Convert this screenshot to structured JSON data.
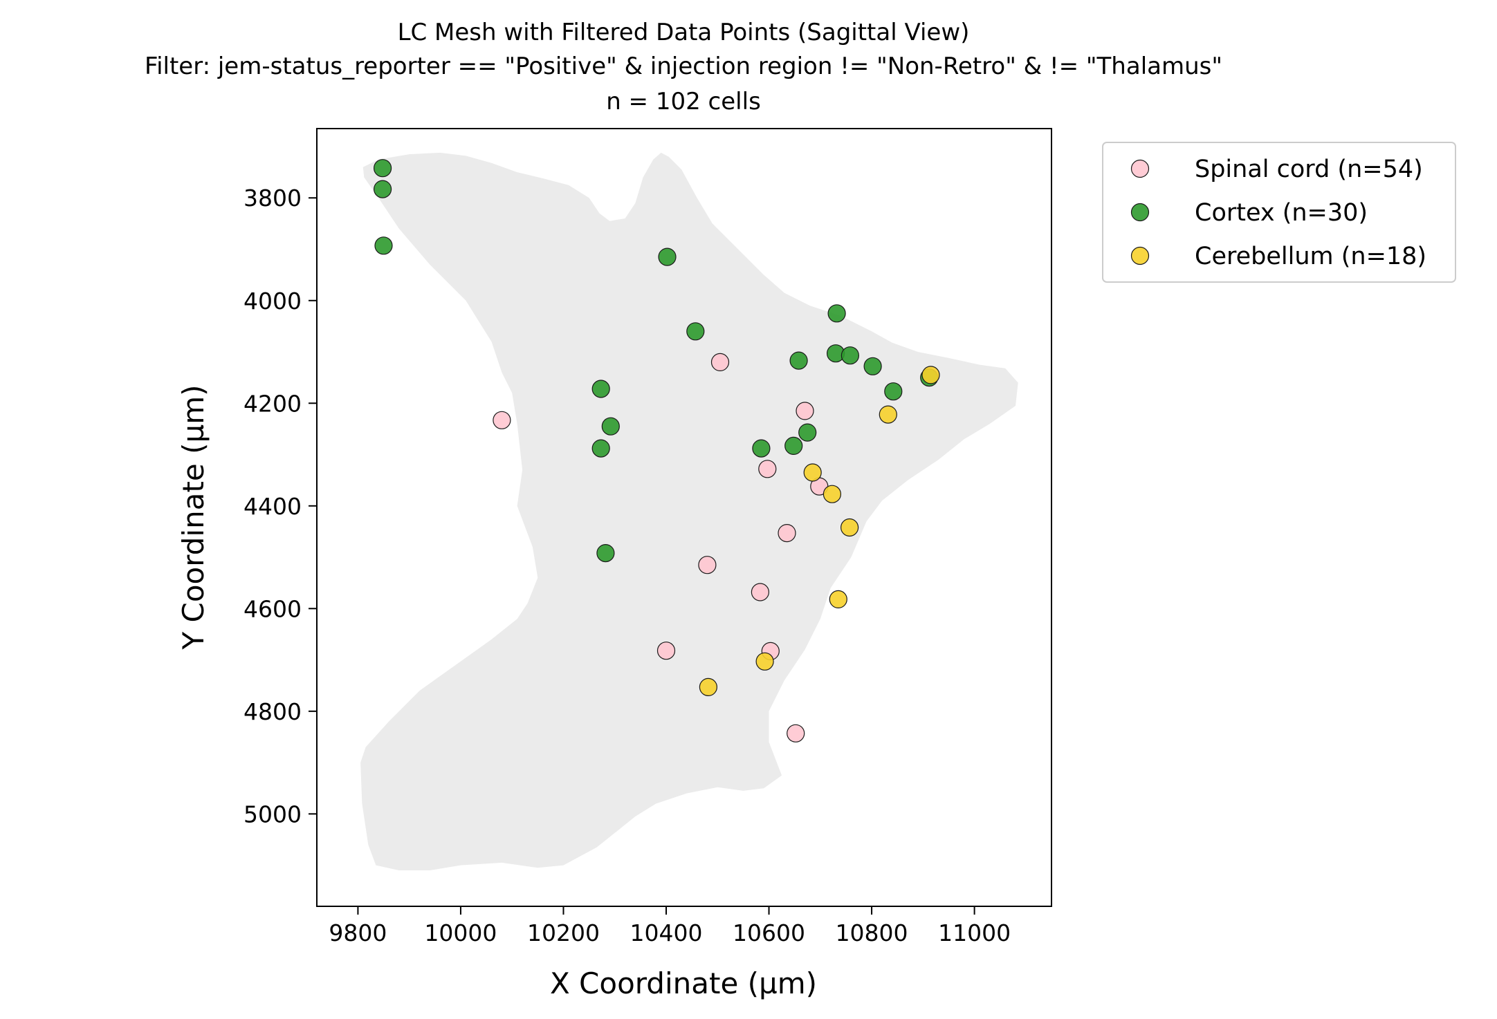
{
  "chart_data": {
    "type": "scatter",
    "title_lines": [
      "LC Mesh with Filtered Data Points (Sagittal View)",
      "Filter: jem-status_reporter == \"Positive\" & injection region != \"Non-Retro\" & != \"Thalamus\"",
      "n = 102 cells"
    ],
    "xlabel": "X Coordinate (µm)",
    "ylabel": "Y Coordinate (µm)",
    "xlim": [
      9720,
      11150
    ],
    "ylim": [
      5180,
      3665
    ],
    "y_inverted": true,
    "xticks": [
      9800,
      10000,
      10200,
      10400,
      10600,
      10800,
      11000
    ],
    "yticks": [
      3800,
      4000,
      4200,
      4400,
      4600,
      4800,
      5000
    ],
    "grid": false,
    "legend_position": "outside-right",
    "mesh_color": "#ebebeb",
    "mesh_outline": [
      [
        9810,
        3740
      ],
      [
        9840,
        3725
      ],
      [
        9900,
        3715
      ],
      [
        9960,
        3712
      ],
      [
        10010,
        3718
      ],
      [
        10060,
        3732
      ],
      [
        10110,
        3750
      ],
      [
        10160,
        3762
      ],
      [
        10210,
        3775
      ],
      [
        10250,
        3800
      ],
      [
        10270,
        3830
      ],
      [
        10290,
        3845
      ],
      [
        10320,
        3840
      ],
      [
        10340,
        3810
      ],
      [
        10355,
        3760
      ],
      [
        10375,
        3725
      ],
      [
        10390,
        3712
      ],
      [
        10405,
        3720
      ],
      [
        10430,
        3745
      ],
      [
        10460,
        3800
      ],
      [
        10490,
        3850
      ],
      [
        10540,
        3900
      ],
      [
        10590,
        3950
      ],
      [
        10630,
        3985
      ],
      [
        10680,
        4010
      ],
      [
        10740,
        4030
      ],
      [
        10800,
        4060
      ],
      [
        10840,
        4082
      ],
      [
        10890,
        4100
      ],
      [
        10950,
        4112
      ],
      [
        11010,
        4125
      ],
      [
        11060,
        4132
      ],
      [
        11085,
        4160
      ],
      [
        11080,
        4205
      ],
      [
        11030,
        4240
      ],
      [
        10980,
        4270
      ],
      [
        10930,
        4310
      ],
      [
        10870,
        4350
      ],
      [
        10820,
        4390
      ],
      [
        10790,
        4430
      ],
      [
        10760,
        4500
      ],
      [
        10720,
        4560
      ],
      [
        10700,
        4620
      ],
      [
        10670,
        4680
      ],
      [
        10630,
        4740
      ],
      [
        10600,
        4800
      ],
      [
        10600,
        4860
      ],
      [
        10625,
        4925
      ],
      [
        10590,
        4950
      ],
      [
        10550,
        4955
      ],
      [
        10500,
        4948
      ],
      [
        10440,
        4960
      ],
      [
        10380,
        4980
      ],
      [
        10340,
        5005
      ],
      [
        10290,
        5045
      ],
      [
        10265,
        5065
      ],
      [
        10200,
        5100
      ],
      [
        10150,
        5105
      ],
      [
        10080,
        5095
      ],
      [
        10000,
        5100
      ],
      [
        9940,
        5110
      ],
      [
        9880,
        5110
      ],
      [
        9835,
        5100
      ],
      [
        9820,
        5060
      ],
      [
        9808,
        4980
      ],
      [
        9805,
        4900
      ],
      [
        9815,
        4870
      ],
      [
        9860,
        4820
      ],
      [
        9920,
        4760
      ],
      [
        9990,
        4710
      ],
      [
        10060,
        4660
      ],
      [
        10110,
        4620
      ],
      [
        10130,
        4590
      ],
      [
        10150,
        4540
      ],
      [
        10140,
        4480
      ],
      [
        10110,
        4400
      ],
      [
        10120,
        4330
      ],
      [
        10110,
        4240
      ],
      [
        10100,
        4180
      ],
      [
        10080,
        4140
      ],
      [
        10060,
        4080
      ],
      [
        10035,
        4040
      ],
      [
        10010,
        4000
      ],
      [
        9990,
        3980
      ],
      [
        9940,
        3930
      ],
      [
        9880,
        3860
      ],
      [
        9840,
        3800
      ],
      [
        9812,
        3760
      ]
    ],
    "series": [
      {
        "name": "Spinal cord (n=54)",
        "color": "#ffc7d0",
        "x": [
          10080,
          10505,
          10670,
          10597,
          10698,
          10635,
          10480,
          10583,
          10400,
          10603,
          10652
        ],
        "y": [
          4233,
          4120,
          4215,
          4328,
          4362,
          4453,
          4515,
          4568,
          4682,
          4683,
          4843
        ]
      },
      {
        "name": "Cortex (n=30)",
        "color": "#2e9a2e",
        "x": [
          9848,
          9848,
          9850,
          10402,
          10457,
          10732,
          10658,
          10730,
          10758,
          10802,
          10842,
          10912,
          10273,
          10292,
          10273,
          10585,
          10648,
          10675,
          10282
        ],
        "y": [
          3742,
          3783,
          3893,
          3915,
          4060,
          4025,
          4117,
          4103,
          4107,
          4128,
          4177,
          4150,
          4172,
          4245,
          4288,
          4288,
          4283,
          4257,
          4492
        ]
      },
      {
        "name": "Cerebellum (n=18)",
        "color": "#f7d22c",
        "x": [
          10915,
          10832,
          10685,
          10723,
          10757,
          10735,
          10592,
          10482
        ],
        "y": [
          4145,
          4222,
          4335,
          4377,
          4442,
          4582,
          4703,
          4753
        ]
      }
    ]
  }
}
